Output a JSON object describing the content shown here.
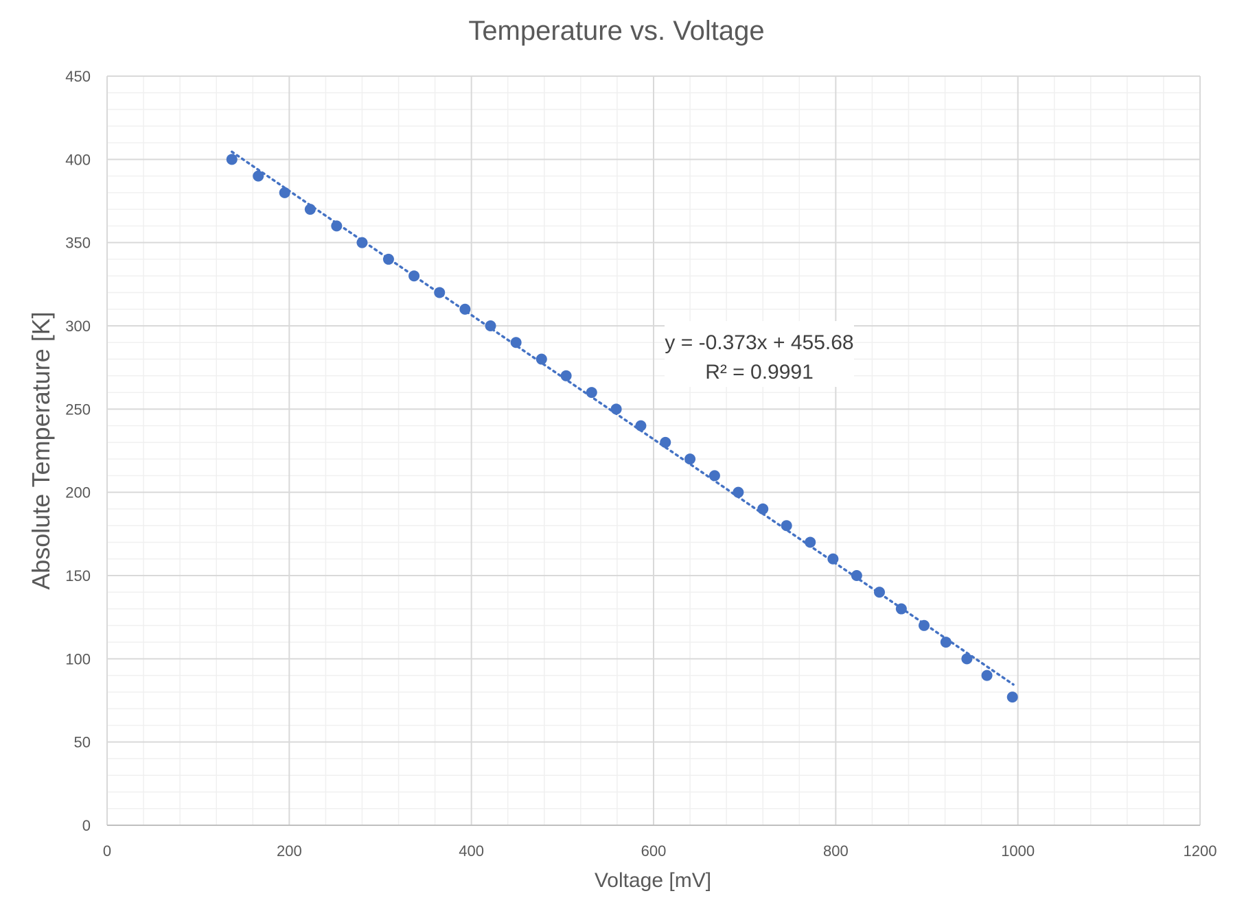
{
  "chart_data": {
    "type": "scatter",
    "title": "Temperature vs. Voltage",
    "xlabel": "Voltage [mV]",
    "ylabel": "Absolute Temperature [K]",
    "xlim": [
      0,
      1200
    ],
    "ylim": [
      0,
      450
    ],
    "xticks": [
      "0",
      "200",
      "400",
      "600",
      "800",
      "1000",
      "1200"
    ],
    "yticks": [
      "0",
      "50",
      "100",
      "150",
      "200",
      "250",
      "300",
      "350",
      "400",
      "450"
    ],
    "grid": true,
    "marker_color": "#4472C4",
    "trendline_color": "#4472C4",
    "trendline": {
      "slope": -0.373,
      "intercept": 455.68,
      "x_range": [
        137,
        995
      ],
      "equation": "y = -0.373x + 455.68",
      "r_squared": "R² = 0.9991"
    },
    "points": [
      {
        "x": 137,
        "y": 400
      },
      {
        "x": 166,
        "y": 390
      },
      {
        "x": 195,
        "y": 380
      },
      {
        "x": 223,
        "y": 370
      },
      {
        "x": 252,
        "y": 360
      },
      {
        "x": 280,
        "y": 350
      },
      {
        "x": 309,
        "y": 340
      },
      {
        "x": 337,
        "y": 330
      },
      {
        "x": 365,
        "y": 320
      },
      {
        "x": 393,
        "y": 310
      },
      {
        "x": 421,
        "y": 300
      },
      {
        "x": 449,
        "y": 290
      },
      {
        "x": 477,
        "y": 280
      },
      {
        "x": 504,
        "y": 270
      },
      {
        "x": 532,
        "y": 260
      },
      {
        "x": 559,
        "y": 250
      },
      {
        "x": 586,
        "y": 240
      },
      {
        "x": 613,
        "y": 230
      },
      {
        "x": 640,
        "y": 220
      },
      {
        "x": 667,
        "y": 210
      },
      {
        "x": 693,
        "y": 200
      },
      {
        "x": 720,
        "y": 190
      },
      {
        "x": 746,
        "y": 180
      },
      {
        "x": 772,
        "y": 170
      },
      {
        "x": 797,
        "y": 160
      },
      {
        "x": 823,
        "y": 150
      },
      {
        "x": 848,
        "y": 140
      },
      {
        "x": 872,
        "y": 130
      },
      {
        "x": 897,
        "y": 120
      },
      {
        "x": 921,
        "y": 110
      },
      {
        "x": 944,
        "y": 100
      },
      {
        "x": 966,
        "y": 90
      },
      {
        "x": 994,
        "y": 77
      }
    ]
  }
}
